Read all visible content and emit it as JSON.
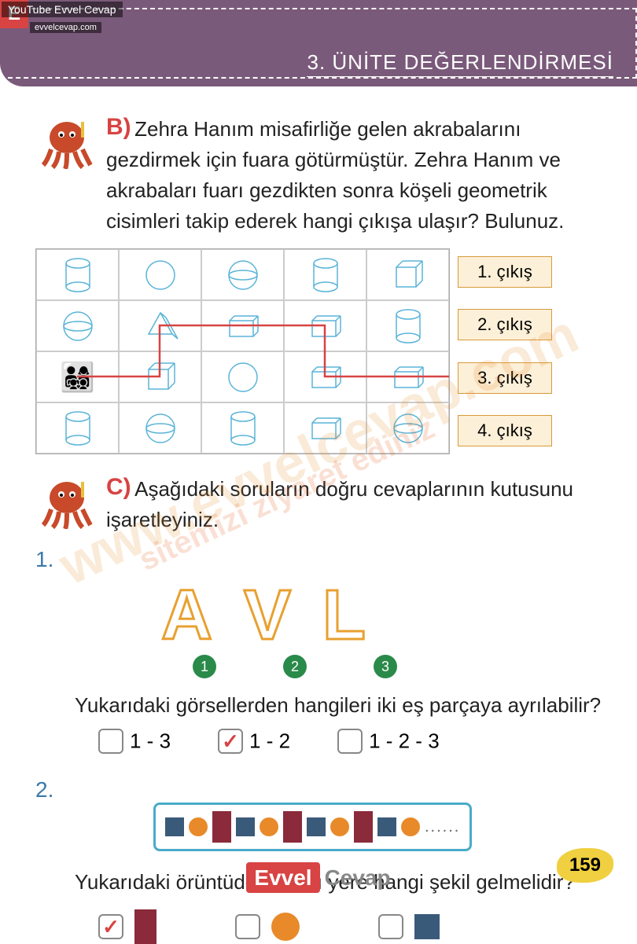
{
  "watermark": {
    "youtube": "YouTube Evvel Cevap",
    "url": "evvelcevap.com",
    "badge": "E",
    "diag1": "www.evvelcevap.com",
    "diag2": "sitemizi ziyaret ediniz"
  },
  "header": {
    "title": "3. ÜNİTE DEĞERLENDİRMESİ"
  },
  "sectionB": {
    "letter": "B)",
    "text": "Zehra Hanım misafirliğe gelen akrabalarını gezdirmek için fuara götürmüştür. Zehra Hanım ve akrabaları fuarı gezdikten sonra köşeli geometrik cisimleri takip ederek hangi çıkışa ulaşır? Bulunuz.",
    "exits": [
      "1. çıkış",
      "2. çıkış",
      "3. çıkış",
      "4. çıkış"
    ],
    "grid_cols": 5,
    "grid_rows": 4,
    "shapes": [
      [
        "cylinder",
        "circle",
        "sphere",
        "cylinder",
        "cube"
      ],
      [
        "sphere",
        "prism",
        "box",
        "box",
        "cylinder"
      ],
      [
        "people",
        "cube",
        "circle",
        "box",
        "box"
      ],
      [
        "cylinder",
        "sphere",
        "cylinder",
        "box",
        "sphere"
      ]
    ],
    "shape_stroke": "#5ab4d8",
    "path_color": "#d84343",
    "exit_border": "#d89a3a",
    "exit_bg": "#fdf0d8"
  },
  "sectionC": {
    "letter": "C)",
    "text": "Aşağıdaki soruların doğru cevaplarının kutusunu işaretleyiniz.",
    "q1": {
      "num": "1.",
      "letters": [
        "A",
        "V",
        "L"
      ],
      "letter_stroke": "#e8a030",
      "circles": [
        "1",
        "2",
        "3"
      ],
      "circle_bg": "#2a8a4a",
      "prompt": "Yukarıdaki görsellerden hangileri iki eş parçaya ayrılabilir?",
      "options": [
        "1 - 3",
        "1 - 2",
        "1 - 2 - 3"
      ],
      "checked_index": 1
    },
    "q2": {
      "num": "2.",
      "pattern": [
        "sq",
        "circ",
        "rect",
        "sq",
        "circ",
        "rect",
        "sq",
        "circ",
        "rect",
        "sq",
        "circ"
      ],
      "colors": {
        "sq": "#3a5a7a",
        "circ": "#e88a2a",
        "rect": "#8a2a3a"
      },
      "prompt": "Yukarıdaki örüntüde noktalı yere hangi şekil gelmelidir?",
      "options_shapes": [
        "rect",
        "circ",
        "sq"
      ],
      "checked_index": 0,
      "box_border": "#4aaac8"
    }
  },
  "footer": {
    "logo_red": "Evvel",
    "logo_gray": "Cevap",
    "page": "159"
  }
}
